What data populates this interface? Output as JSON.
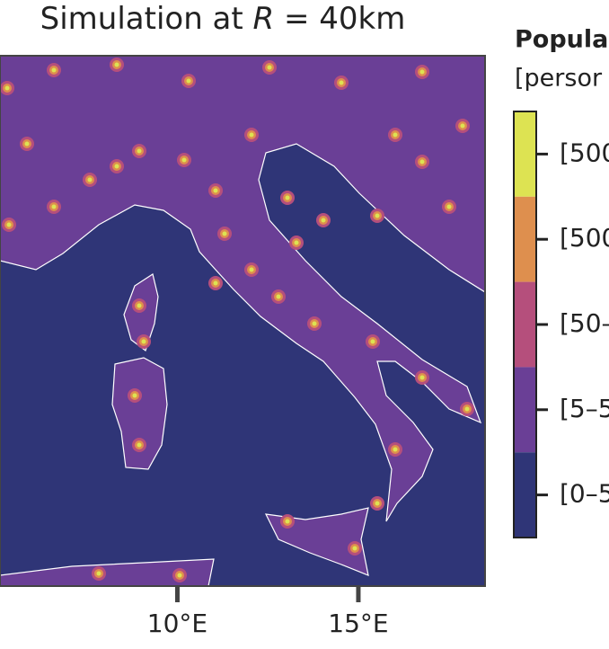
{
  "title": [
    "Simulation at ",
    "R",
    " = 40km"
  ],
  "legend": {
    "title": "Popula",
    "subtitle": "[persor",
    "classes": [
      {
        "label": "[500",
        "color": "#dde352"
      },
      {
        "label": "[500",
        "color": "#de8f4e"
      },
      {
        "label": "[50–",
        "color": "#b54f7c"
      },
      {
        "label": "[5–5",
        "color": "#6a3f96"
      },
      {
        "label": "[0–5",
        "color": "#2f3577"
      }
    ]
  },
  "map": {
    "xlim": [
      5.1,
      18.5
    ],
    "xticks": [
      {
        "value": 10,
        "label": "10°E"
      },
      {
        "value": 15,
        "label": "15°E"
      }
    ]
  }
}
